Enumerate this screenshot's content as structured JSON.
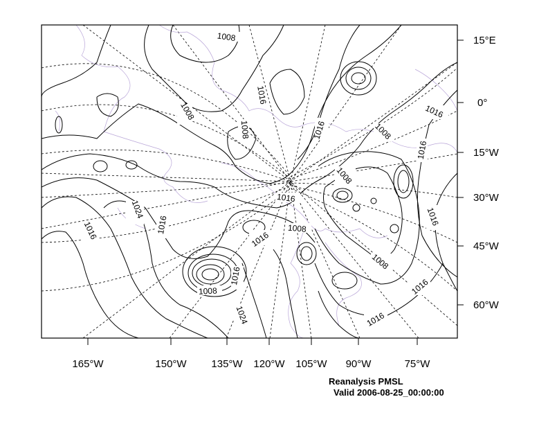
{
  "map": {
    "caption": {
      "title": "Reanalysis PMSL",
      "valid": "Valid 2006-08-25_00:00:00"
    },
    "lat_labels": [
      "15°E",
      "0°",
      "15°W",
      "30°W",
      "45°W",
      "60°W"
    ],
    "lon_labels": [
      "165°W",
      "150°W",
      "135°W",
      "120°W",
      "105°W",
      "90°W",
      "75°W"
    ],
    "contour_labels": [
      "1008",
      "1016",
      "1008",
      "1008",
      "1016",
      "1008",
      "1016",
      "1016",
      "1008",
      "1016",
      "1024",
      "1016",
      "1016",
      "1016",
      "1008",
      "1008",
      "1016",
      "1016",
      "1024",
      "1016",
      "1008",
      "1016",
      "1016"
    ],
    "colors": {
      "contour": "#000000",
      "coastline": "#b9a6d8",
      "grid": "#000000",
      "background": "#ffffff"
    }
  }
}
